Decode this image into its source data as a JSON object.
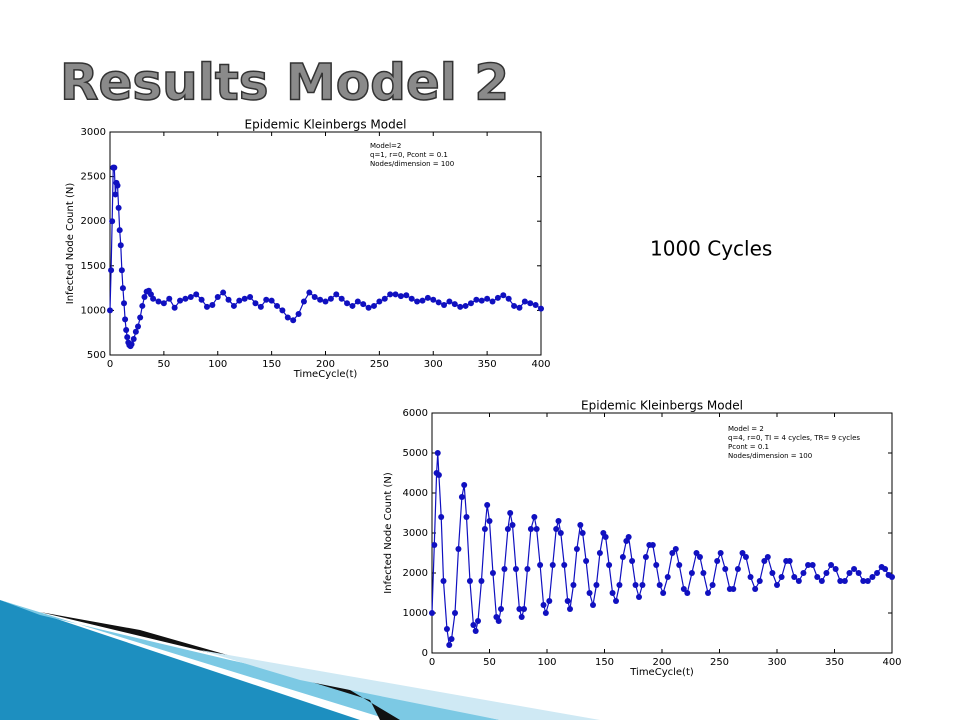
{
  "slide": {
    "title": "Results Model 2",
    "note": "1000 Cycles"
  },
  "chart_data": [
    {
      "type": "line",
      "title": "Epidemic Kleinbergs Model",
      "x_label": "TimeCycle(t)",
      "y_label": "Infected Node Count (N)",
      "annotations": [
        "Model=2",
        "q=1, r=0, Pcont = 0.1",
        "Nodes/dimension = 100"
      ],
      "xlim": [
        0,
        400
      ],
      "ylim": [
        500,
        3000
      ],
      "xticks": [
        0,
        50,
        100,
        150,
        200,
        250,
        300,
        350,
        400
      ],
      "yticks": [
        500,
        1000,
        1500,
        2000,
        2500,
        3000
      ],
      "x": [
        0,
        1,
        2,
        3,
        4,
        5,
        6,
        7,
        8,
        9,
        10,
        11,
        12,
        13,
        14,
        15,
        16,
        17,
        18,
        19,
        20,
        22,
        24,
        26,
        28,
        30,
        32,
        34,
        36,
        38,
        40,
        45,
        50,
        55,
        60,
        65,
        70,
        75,
        80,
        85,
        90,
        95,
        100,
        105,
        110,
        115,
        120,
        125,
        130,
        135,
        140,
        145,
        150,
        155,
        160,
        165,
        170,
        175,
        180,
        185,
        190,
        195,
        200,
        205,
        210,
        215,
        220,
        225,
        230,
        235,
        240,
        245,
        250,
        255,
        260,
        265,
        270,
        275,
        280,
        285,
        290,
        295,
        300,
        305,
        310,
        315,
        320,
        325,
        330,
        335,
        340,
        345,
        350,
        355,
        360,
        365,
        370,
        375,
        380,
        385,
        390,
        395,
        400
      ],
      "series": [
        {
          "name": "Infected",
          "color": "#1010c0",
          "values": [
            1000,
            1450,
            2000,
            2600,
            2600,
            2300,
            2430,
            2400,
            2150,
            1900,
            1730,
            1450,
            1250,
            1080,
            900,
            780,
            700,
            640,
            610,
            600,
            620,
            680,
            760,
            820,
            920,
            1050,
            1150,
            1210,
            1220,
            1180,
            1130,
            1100,
            1080,
            1130,
            1030,
            1110,
            1130,
            1150,
            1180,
            1120,
            1040,
            1060,
            1150,
            1200,
            1120,
            1050,
            1110,
            1130,
            1150,
            1080,
            1040,
            1120,
            1110,
            1050,
            1000,
            920,
            890,
            960,
            1100,
            1200,
            1150,
            1120,
            1100,
            1130,
            1180,
            1130,
            1080,
            1050,
            1100,
            1070,
            1030,
            1050,
            1100,
            1130,
            1180,
            1180,
            1160,
            1170,
            1130,
            1100,
            1110,
            1140,
            1120,
            1090,
            1060,
            1100,
            1070,
            1040,
            1050,
            1080,
            1120,
            1110,
            1130,
            1100,
            1140,
            1170,
            1130,
            1050,
            1030,
            1100,
            1080,
            1060,
            1020
          ]
        }
      ]
    },
    {
      "type": "line",
      "title": "Epidemic Kleinbergs Model",
      "x_label": "TimeCycle(t)",
      "y_label": "Infected Node Count (N)",
      "annotations": [
        "Model = 2",
        "q=4, r=0, TI = 4 cycles, TR= 9 cycles",
        "Pcont = 0.1",
        "Nodes/dimension = 100"
      ],
      "xlim": [
        0,
        400
      ],
      "ylim": [
        0,
        6000
      ],
      "xticks": [
        0,
        50,
        100,
        150,
        200,
        250,
        300,
        350,
        400
      ],
      "yticks": [
        0,
        1000,
        2000,
        3000,
        4000,
        5000,
        6000
      ],
      "x": [
        0,
        2,
        4,
        5,
        6,
        8,
        10,
        13,
        15,
        17,
        20,
        23,
        26,
        28,
        30,
        33,
        36,
        38,
        40,
        43,
        46,
        48,
        50,
        53,
        56,
        58,
        60,
        63,
        66,
        68,
        70,
        73,
        76,
        78,
        80,
        83,
        86,
        89,
        91,
        94,
        97,
        99,
        102,
        105,
        108,
        110,
        112,
        115,
        118,
        120,
        123,
        126,
        129,
        131,
        134,
        137,
        140,
        143,
        146,
        149,
        151,
        154,
        157,
        160,
        163,
        166,
        169,
        171,
        174,
        177,
        180,
        183,
        186,
        189,
        192,
        195,
        198,
        201,
        205,
        209,
        212,
        215,
        219,
        222,
        226,
        230,
        233,
        236,
        240,
        244,
        248,
        251,
        255,
        259,
        262,
        266,
        270,
        273,
        277,
        281,
        285,
        289,
        292,
        296,
        300,
        304,
        308,
        311,
        315,
        319,
        323,
        327,
        331,
        335,
        339,
        343,
        347,
        351,
        355,
        359,
        363,
        367,
        371,
        375,
        379,
        383,
        387,
        391,
        394,
        397,
        400
      ],
      "series": [
        {
          "name": "Infected",
          "color": "#1010c0",
          "values": [
            1000,
            2700,
            4500,
            5000,
            4450,
            3400,
            1800,
            600,
            200,
            350,
            1000,
            2600,
            3900,
            4200,
            3400,
            1800,
            700,
            550,
            800,
            1800,
            3100,
            3700,
            3300,
            2000,
            900,
            800,
            1100,
            2100,
            3100,
            3500,
            3200,
            2100,
            1100,
            900,
            1100,
            2100,
            3100,
            3400,
            3100,
            2200,
            1200,
            1000,
            1300,
            2200,
            3100,
            3300,
            3000,
            2200,
            1300,
            1100,
            1700,
            2600,
            3200,
            3000,
            2300,
            1500,
            1200,
            1700,
            2500,
            3000,
            2900,
            2200,
            1500,
            1300,
            1700,
            2400,
            2800,
            2900,
            2300,
            1700,
            1400,
            1700,
            2400,
            2700,
            2700,
            2200,
            1700,
            1500,
            1900,
            2500,
            2600,
            2200,
            1600,
            1500,
            2000,
            2500,
            2400,
            2000,
            1500,
            1700,
            2300,
            2500,
            2100,
            1600,
            1600,
            2100,
            2500,
            2400,
            1900,
            1600,
            1800,
            2300,
            2400,
            2000,
            1700,
            1900,
            2300,
            2300,
            1900,
            1800,
            2000,
            2200,
            2200,
            1900,
            1800,
            2000,
            2200,
            2100,
            1800,
            1800,
            2000,
            2100,
            2000,
            1800,
            1800,
            1900,
            2000,
            2150,
            2100,
            1950,
            1900
          ]
        }
      ]
    }
  ]
}
